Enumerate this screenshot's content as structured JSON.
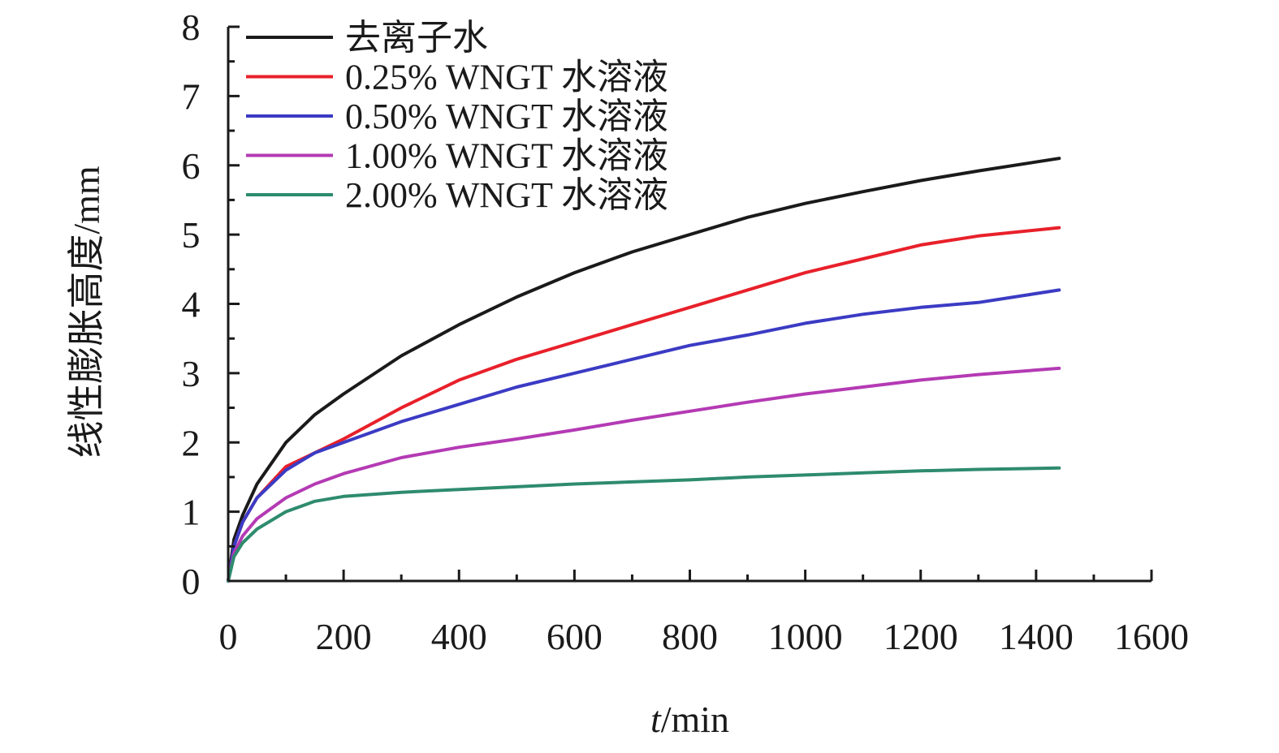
{
  "chart_data": {
    "type": "line",
    "title": "",
    "xlabel_italic": "t",
    "xlabel_unit": "/min",
    "ylabel": "线性膨胀高度/mm",
    "xlim": [
      0,
      1600
    ],
    "ylim": [
      0,
      8
    ],
    "x_ticks": [
      "0",
      "200",
      "400",
      "600",
      "800",
      "1000",
      "1200",
      "1400",
      "1600"
    ],
    "y_ticks": [
      "0",
      "1",
      "2",
      "3",
      "4",
      "5",
      "6",
      "7",
      "8"
    ],
    "grid": false,
    "legend_position": "top-left",
    "series": [
      {
        "name": "去离子水",
        "color": "#1a1a1a",
        "x": [
          0,
          10,
          25,
          50,
          100,
          150,
          200,
          300,
          400,
          500,
          600,
          700,
          800,
          900,
          1000,
          1100,
          1200,
          1300,
          1440
        ],
        "values": [
          0,
          0.6,
          0.95,
          1.4,
          2.0,
          2.4,
          2.7,
          3.25,
          3.7,
          4.1,
          4.45,
          4.75,
          5.0,
          5.25,
          5.45,
          5.62,
          5.78,
          5.92,
          6.1
        ]
      },
      {
        "name": "0.25% WNGT 水溶液",
        "color": "#e8202a",
        "x": [
          0,
          10,
          25,
          50,
          100,
          150,
          200,
          300,
          400,
          500,
          600,
          700,
          800,
          900,
          1000,
          1100,
          1200,
          1300,
          1440
        ],
        "values": [
          0,
          0.5,
          0.85,
          1.2,
          1.65,
          1.85,
          2.05,
          2.5,
          2.9,
          3.2,
          3.45,
          3.7,
          3.95,
          4.2,
          4.45,
          4.65,
          4.85,
          4.98,
          5.1
        ]
      },
      {
        "name": "0.50% WNGT 水溶液",
        "color": "#3b3bc4",
        "x": [
          0,
          10,
          25,
          50,
          100,
          150,
          200,
          300,
          400,
          500,
          600,
          700,
          800,
          900,
          1000,
          1100,
          1200,
          1300,
          1440
        ],
        "values": [
          0,
          0.5,
          0.85,
          1.2,
          1.6,
          1.85,
          2.0,
          2.3,
          2.55,
          2.8,
          3.0,
          3.2,
          3.4,
          3.55,
          3.72,
          3.85,
          3.95,
          4.02,
          4.2
        ]
      },
      {
        "name": "1.00% WNGT 水溶液",
        "color": "#b43ab4",
        "x": [
          0,
          10,
          25,
          50,
          100,
          150,
          200,
          300,
          400,
          500,
          600,
          700,
          800,
          900,
          1000,
          1100,
          1200,
          1300,
          1440
        ],
        "values": [
          0,
          0.4,
          0.65,
          0.9,
          1.2,
          1.4,
          1.55,
          1.78,
          1.93,
          2.05,
          2.18,
          2.32,
          2.45,
          2.58,
          2.7,
          2.8,
          2.9,
          2.98,
          3.07
        ]
      },
      {
        "name": "2.00% WNGT 水溶液",
        "color": "#2e8b6e",
        "x": [
          0,
          10,
          25,
          50,
          100,
          150,
          200,
          300,
          400,
          500,
          600,
          700,
          800,
          900,
          1000,
          1100,
          1200,
          1300,
          1440
        ],
        "values": [
          0,
          0.35,
          0.55,
          0.75,
          1.0,
          1.15,
          1.22,
          1.28,
          1.32,
          1.36,
          1.4,
          1.43,
          1.46,
          1.5,
          1.53,
          1.56,
          1.59,
          1.61,
          1.63
        ]
      }
    ]
  }
}
